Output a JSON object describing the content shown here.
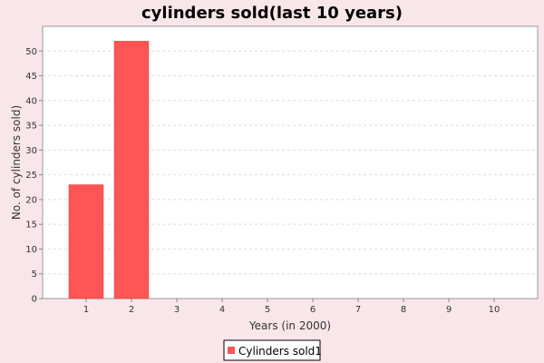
{
  "chart_data": {
    "type": "bar",
    "title": "cylinders sold(last 10 years)",
    "xlabel": "Years (in 2000)",
    "ylabel": "No. of cylinders sold)",
    "categories": [
      "1",
      "2",
      "3",
      "4",
      "5",
      "6",
      "7",
      "8",
      "9",
      "10"
    ],
    "series": [
      {
        "name": "Cylinders sold1",
        "color": "#ff5555",
        "values": [
          23,
          52,
          0,
          0,
          0,
          0,
          0,
          0,
          0,
          0
        ]
      }
    ],
    "ylim": [
      0,
      55
    ],
    "yticks": [
      0,
      5,
      10,
      15,
      20,
      25,
      30,
      35,
      40,
      45,
      50
    ],
    "grid": true,
    "legend_position": "bottom"
  }
}
